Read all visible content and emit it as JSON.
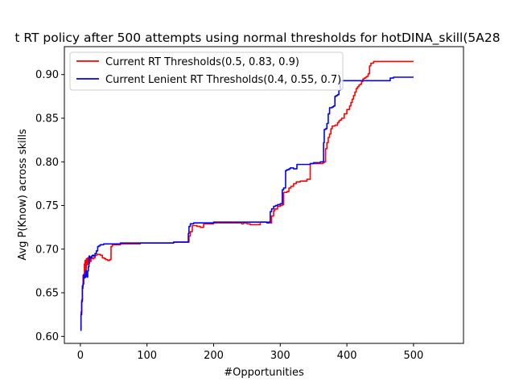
{
  "chart_data": {
    "type": "line",
    "title": "t RT policy after 500 attempts using normal thresholds for hotDINA_skill(5A28",
    "xlabel": "#Opportunities",
    "ylabel": "Avg P(Know) across skills",
    "xlim": [
      -24,
      575
    ],
    "ylim": [
      0.592,
      0.932
    ],
    "xticks": [
      0,
      100,
      200,
      300,
      400,
      500
    ],
    "yticks": [
      0.6,
      0.65,
      0.7,
      0.75,
      0.8,
      0.85,
      0.9
    ],
    "xtick_labels": [
      "0",
      "100",
      "200",
      "300",
      "400",
      "500"
    ],
    "ytick_labels": [
      "0.60",
      "0.65",
      "0.70",
      "0.75",
      "0.80",
      "0.85",
      "0.90"
    ],
    "legend_position": "upper-left",
    "grid": false,
    "series": [
      {
        "name": "Current RT Thresholds(0.5, 0.83, 0.9)",
        "color": "#ff0000",
        "x": [
          0,
          1,
          2,
          3,
          4,
          6,
          7,
          8,
          9,
          10,
          11,
          12,
          13,
          14,
          15,
          16,
          18,
          20,
          22,
          25,
          30,
          33,
          36,
          38,
          41,
          44,
          46,
          48,
          60,
          90,
          140,
          160,
          163,
          165,
          168,
          175,
          180,
          185,
          200,
          240,
          242,
          245,
          250,
          255,
          260,
          265,
          270,
          282,
          285,
          287,
          290,
          292,
          296,
          300,
          303,
          305,
          310,
          313,
          316,
          320,
          324,
          330,
          340,
          345,
          360,
          364,
          366,
          368,
          370,
          372,
          374,
          376,
          378,
          382,
          386,
          388,
          390,
          392,
          394,
          396,
          400,
          404,
          406,
          408,
          410,
          412,
          414,
          416,
          418,
          420,
          422,
          424,
          426,
          428,
          430,
          432,
          434,
          436,
          440,
          460,
          500
        ],
        "y": [
          0.609,
          0.628,
          0.642,
          0.655,
          0.67,
          0.683,
          0.687,
          0.672,
          0.689,
          0.682,
          0.69,
          0.685,
          0.684,
          0.689,
          0.686,
          0.69,
          0.689,
          0.69,
          0.693,
          0.694,
          0.693,
          0.69,
          0.689,
          0.688,
          0.687,
          0.688,
          0.703,
          0.705,
          0.706,
          0.707,
          0.708,
          0.708,
          0.715,
          0.72,
          0.727,
          0.726,
          0.725,
          0.729,
          0.73,
          0.73,
          0.729,
          0.73,
          0.729,
          0.728,
          0.728,
          0.728,
          0.731,
          0.731,
          0.73,
          0.738,
          0.744,
          0.746,
          0.749,
          0.75,
          0.751,
          0.765,
          0.766,
          0.77,
          0.772,
          0.775,
          0.777,
          0.778,
          0.78,
          0.798,
          0.798,
          0.799,
          0.8,
          0.815,
          0.822,
          0.828,
          0.832,
          0.838,
          0.841,
          0.842,
          0.845,
          0.847,
          0.848,
          0.85,
          0.85,
          0.855,
          0.86,
          0.864,
          0.868,
          0.872,
          0.876,
          0.88,
          0.884,
          0.886,
          0.888,
          0.889,
          0.892,
          0.895,
          0.896,
          0.897,
          0.898,
          0.901,
          0.91,
          0.913,
          0.915,
          0.915,
          0.915
        ]
      },
      {
        "name": "Current Lenient RT Thresholds(0.4, 0.55, 0.7)",
        "color": "#0000ff",
        "x": [
          0,
          1,
          2,
          3,
          4,
          5,
          6,
          7,
          8,
          9,
          10,
          11,
          12,
          13,
          14,
          15,
          16,
          17,
          18,
          20,
          22,
          24,
          26,
          28,
          30,
          35,
          40,
          60,
          90,
          140,
          160,
          162,
          163,
          165,
          170,
          180,
          200,
          250,
          280,
          283,
          285,
          287,
          290,
          293,
          296,
          300,
          303,
          305,
          308,
          310,
          313,
          315,
          318,
          320,
          325,
          330,
          340,
          345,
          350,
          355,
          360,
          365,
          366,
          368,
          370,
          372,
          374,
          376,
          378,
          380,
          382,
          384,
          386,
          388,
          390,
          392,
          394,
          396,
          400,
          420,
          440,
          460,
          465,
          470,
          500
        ],
        "y": [
          0.607,
          0.625,
          0.64,
          0.658,
          0.66,
          0.671,
          0.667,
          0.668,
          0.675,
          0.671,
          0.668,
          0.675,
          0.68,
          0.692,
          0.69,
          0.691,
          0.69,
          0.692,
          0.693,
          0.692,
          0.695,
          0.698,
          0.703,
          0.704,
          0.705,
          0.706,
          0.706,
          0.707,
          0.707,
          0.708,
          0.708,
          0.718,
          0.726,
          0.729,
          0.73,
          0.73,
          0.731,
          0.731,
          0.73,
          0.731,
          0.743,
          0.746,
          0.749,
          0.75,
          0.751,
          0.752,
          0.768,
          0.77,
          0.79,
          0.791,
          0.792,
          0.793,
          0.793,
          0.792,
          0.797,
          0.797,
          0.797,
          0.798,
          0.799,
          0.799,
          0.8,
          0.822,
          0.837,
          0.838,
          0.844,
          0.855,
          0.862,
          0.862,
          0.863,
          0.864,
          0.875,
          0.876,
          0.877,
          0.882,
          0.893,
          0.893,
          0.893,
          0.893,
          0.893,
          0.893,
          0.893,
          0.893,
          0.896,
          0.897,
          0.897
        ]
      }
    ]
  }
}
